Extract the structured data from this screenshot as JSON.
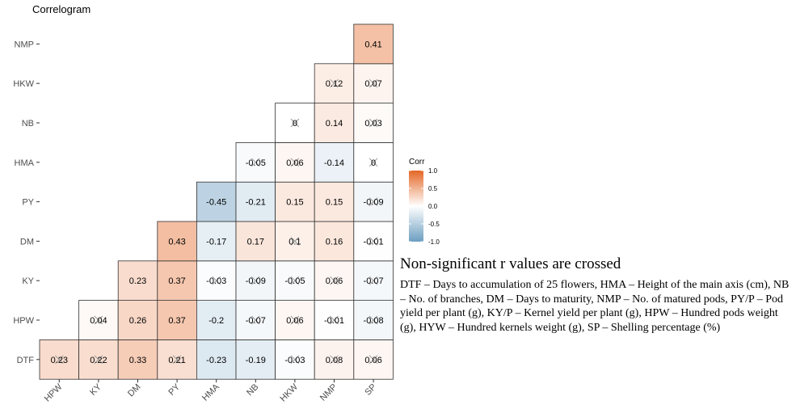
{
  "chart_data": {
    "type": "heatmap",
    "title": "Correlogram",
    "x_categories": [
      "HPW",
      "KY",
      "DM",
      "PY",
      "HMA",
      "NB",
      "HKW",
      "NMP",
      "SP"
    ],
    "y_categories": [
      "DTF",
      "HPW",
      "KY",
      "DM",
      "PY",
      "HMA",
      "NB",
      "HKW",
      "NMP"
    ],
    "cells": [
      {
        "row": "DTF",
        "col": "HPW",
        "value": 0.23,
        "label": "0.23",
        "crossed": true
      },
      {
        "row": "DTF",
        "col": "KY",
        "value": 0.22,
        "label": "0.22",
        "crossed": true
      },
      {
        "row": "DTF",
        "col": "DM",
        "value": 0.33,
        "label": "0.33",
        "crossed": false
      },
      {
        "row": "DTF",
        "col": "PY",
        "value": 0.21,
        "label": "0.21",
        "crossed": true
      },
      {
        "row": "DTF",
        "col": "HMA",
        "value": -0.23,
        "label": "-0.23",
        "crossed": false
      },
      {
        "row": "DTF",
        "col": "NB",
        "value": -0.19,
        "label": "-0.19",
        "crossed": false
      },
      {
        "row": "DTF",
        "col": "HKW",
        "value": -0.03,
        "label": "-0.03",
        "crossed": true
      },
      {
        "row": "DTF",
        "col": "NMP",
        "value": 0.08,
        "label": "0.08",
        "crossed": true
      },
      {
        "row": "DTF",
        "col": "SP",
        "value": 0.06,
        "label": "0.06",
        "crossed": true
      },
      {
        "row": "HPW",
        "col": "KY",
        "value": 0.04,
        "label": "0.04",
        "crossed": true
      },
      {
        "row": "HPW",
        "col": "DM",
        "value": 0.26,
        "label": "0.26",
        "crossed": false
      },
      {
        "row": "HPW",
        "col": "PY",
        "value": 0.37,
        "label": "0.37",
        "crossed": false
      },
      {
        "row": "HPW",
        "col": "HMA",
        "value": -0.2,
        "label": "-0.2",
        "crossed": false
      },
      {
        "row": "HPW",
        "col": "NB",
        "value": -0.07,
        "label": "-0.07",
        "crossed": true
      },
      {
        "row": "HPW",
        "col": "HKW",
        "value": 0.06,
        "label": "0.06",
        "crossed": true
      },
      {
        "row": "HPW",
        "col": "NMP",
        "value": -0.01,
        "label": "-0.01",
        "crossed": true
      },
      {
        "row": "HPW",
        "col": "SP",
        "value": -0.08,
        "label": "-0.08",
        "crossed": true
      },
      {
        "row": "KY",
        "col": "DM",
        "value": 0.23,
        "label": "0.23",
        "crossed": false
      },
      {
        "row": "KY",
        "col": "PY",
        "value": 0.37,
        "label": "0.37",
        "crossed": false
      },
      {
        "row": "KY",
        "col": "HMA",
        "value": -0.03,
        "label": "-0.03",
        "crossed": true
      },
      {
        "row": "KY",
        "col": "NB",
        "value": -0.09,
        "label": "-0.09",
        "crossed": true
      },
      {
        "row": "KY",
        "col": "HKW",
        "value": -0.05,
        "label": "-0.05",
        "crossed": true
      },
      {
        "row": "KY",
        "col": "NMP",
        "value": 0.06,
        "label": "0.06",
        "crossed": true
      },
      {
        "row": "KY",
        "col": "SP",
        "value": -0.07,
        "label": "-0.07",
        "crossed": true
      },
      {
        "row": "DM",
        "col": "PY",
        "value": 0.43,
        "label": "0.43",
        "crossed": false
      },
      {
        "row": "DM",
        "col": "HMA",
        "value": -0.17,
        "label": "-0.17",
        "crossed": false
      },
      {
        "row": "DM",
        "col": "NB",
        "value": 0.17,
        "label": "0.17",
        "crossed": false
      },
      {
        "row": "DM",
        "col": "HKW",
        "value": 0.1,
        "label": "0.1",
        "crossed": true
      },
      {
        "row": "DM",
        "col": "NMP",
        "value": 0.16,
        "label": "0.16",
        "crossed": false
      },
      {
        "row": "DM",
        "col": "SP",
        "value": -0.01,
        "label": "-0.01",
        "crossed": true
      },
      {
        "row": "PY",
        "col": "HMA",
        "value": -0.45,
        "label": "-0.45",
        "crossed": false
      },
      {
        "row": "PY",
        "col": "NB",
        "value": -0.21,
        "label": "-0.21",
        "crossed": false
      },
      {
        "row": "PY",
        "col": "HKW",
        "value": 0.15,
        "label": "0.15",
        "crossed": false
      },
      {
        "row": "PY",
        "col": "NMP",
        "value": 0.15,
        "label": "0.15",
        "crossed": false
      },
      {
        "row": "PY",
        "col": "SP",
        "value": -0.09,
        "label": "-0.09",
        "crossed": true
      },
      {
        "row": "HMA",
        "col": "NB",
        "value": -0.05,
        "label": "-0.05",
        "crossed": true
      },
      {
        "row": "HMA",
        "col": "HKW",
        "value": 0.06,
        "label": "0.06",
        "crossed": true
      },
      {
        "row": "HMA",
        "col": "NMP",
        "value": -0.14,
        "label": "-0.14",
        "crossed": false
      },
      {
        "row": "HMA",
        "col": "SP",
        "value": 0,
        "label": "0",
        "crossed": true
      },
      {
        "row": "NB",
        "col": "HKW",
        "value": 0,
        "label": "0",
        "crossed": true
      },
      {
        "row": "NB",
        "col": "NMP",
        "value": 0.14,
        "label": "0.14",
        "crossed": false
      },
      {
        "row": "NB",
        "col": "SP",
        "value": 0.03,
        "label": "0.03",
        "crossed": true
      },
      {
        "row": "HKW",
        "col": "NMP",
        "value": 0.12,
        "label": "0.12",
        "crossed": true
      },
      {
        "row": "HKW",
        "col": "SP",
        "value": 0.07,
        "label": "0.07",
        "crossed": true
      },
      {
        "row": "NMP",
        "col": "SP",
        "value": 0.41,
        "label": "0.41",
        "crossed": false
      }
    ],
    "legend": {
      "title": "Corr",
      "ticks": [
        "1.0",
        "0.5",
        "0.0",
        "-0.5",
        "-1.0"
      ],
      "tick_values": [
        1.0,
        0.5,
        0.0,
        -0.5,
        -1.0
      ],
      "range": [
        -1.0,
        1.0
      ],
      "placement": "right"
    },
    "colors": {
      "negative": "#6D9EC1",
      "mid": "#FFFFFF",
      "positive": "#E46726",
      "cross": "#999999",
      "border": "#333333"
    },
    "grid": false
  },
  "note": {
    "title": "Non-significant  r values are crossed",
    "text": "DTF – Days to accumulation of 25 flowers, HMA – Height of the main axis (cm), NB – No. of branches, DM – Days to maturity,  NMP – No. of matured pods, PY/P – Pod yield per plant (g), KY/P – Kernel  yield  per plant (g), HPW – Hundred pods weight (g), HYW – Hundred kernels weight (g), SP – Shelling  percentage (%)"
  }
}
